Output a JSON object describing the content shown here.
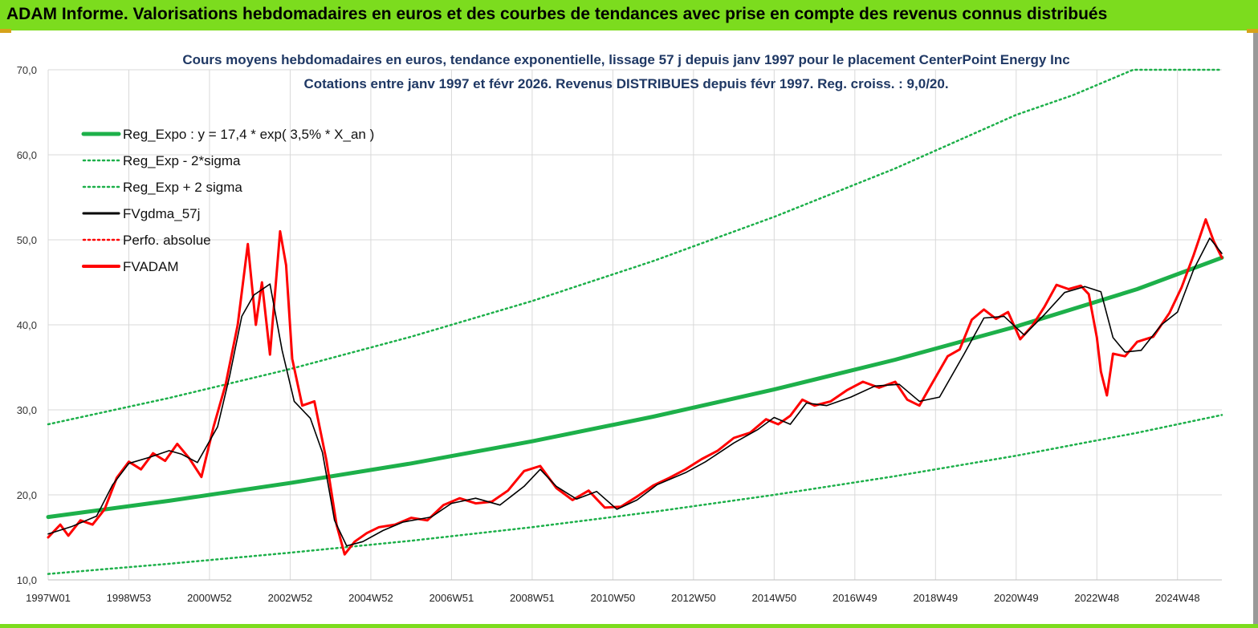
{
  "banner": {
    "title": "ADAM Informe. Valorisations hebdomadaires en euros et des courbes de tendances avec prise en compte des revenus connus distribués"
  },
  "colors": {
    "banner_bg": "#7cdc1e",
    "reg_expo": "#1db04a",
    "sigma_band": "#1db04a",
    "fvgdma": "#000000",
    "perfo": "#ff0000",
    "fvadam": "#ff0000",
    "grid": "#d9d9d9"
  },
  "chart_data": {
    "type": "line",
    "title_lines": [
      "Cours moyens hebdomadaires en euros, tendance exponentielle, lissage 57 j depuis janv 1997 pour le placement CenterPoint Energy Inc",
      "Cotations entre janv 1997 et févr 2026. Revenus DISTRIBUES depuis févr 1997. Reg. croiss. : 9,0/20."
    ],
    "xlabel": "",
    "ylabel": "",
    "x_unit": "year (decimal)",
    "x_range": [
      1997.0,
      2026.1
    ],
    "ylim": [
      10,
      70
    ],
    "yticks": [
      "10,0",
      "20,0",
      "30,0",
      "40,0",
      "50,0",
      "60,0",
      "70,0"
    ],
    "xticks": [
      {
        "label": "1997W01",
        "x": 1997.0
      },
      {
        "label": "1998W53",
        "x": 1999.0
      },
      {
        "label": "2000W52",
        "x": 2001.0
      },
      {
        "label": "2002W52",
        "x": 2003.0
      },
      {
        "label": "2004W52",
        "x": 2005.0
      },
      {
        "label": "2006W51",
        "x": 2007.0
      },
      {
        "label": "2008W51",
        "x": 2009.0
      },
      {
        "label": "2010W50",
        "x": 2011.0
      },
      {
        "label": "2012W50",
        "x": 2013.0
      },
      {
        "label": "2014W50",
        "x": 2015.0
      },
      {
        "label": "2016W49",
        "x": 2017.0
      },
      {
        "label": "2018W49",
        "x": 2019.0
      },
      {
        "label": "2020W49",
        "x": 2021.0
      },
      {
        "label": "2022W48",
        "x": 2023.0
      },
      {
        "label": "2024W48",
        "x": 2025.0
      }
    ],
    "grid": true,
    "legend_position": "top-left",
    "series": [
      {
        "name": "Reg_Expo : y = 17,4 * exp( 3,5% *  X_an )",
        "style": "solid-thick",
        "color": "#1db04a",
        "points": [
          [
            1997.0,
            17.4
          ],
          [
            2000.0,
            19.3
          ],
          [
            2003.0,
            21.4
          ],
          [
            2006.0,
            23.7
          ],
          [
            2009.0,
            26.3
          ],
          [
            2012.0,
            29.2
          ],
          [
            2015.0,
            32.4
          ],
          [
            2018.0,
            35.9
          ],
          [
            2021.0,
            39.8
          ],
          [
            2024.0,
            44.2
          ],
          [
            2026.1,
            47.9
          ]
        ]
      },
      {
        "name": "Reg_Exp - 2*sigma",
        "style": "dotted",
        "color": "#1db04a",
        "points": [
          [
            1997.0,
            10.7
          ],
          [
            2000.0,
            11.9
          ],
          [
            2003.0,
            13.2
          ],
          [
            2006.0,
            14.6
          ],
          [
            2009.0,
            16.2
          ],
          [
            2012.0,
            18.0
          ],
          [
            2015.0,
            20.0
          ],
          [
            2018.0,
            22.2
          ],
          [
            2021.0,
            24.6
          ],
          [
            2024.0,
            27.3
          ],
          [
            2026.1,
            29.4
          ]
        ]
      },
      {
        "name": "Reg_Exp + 2 sigma",
        "style": "dotted",
        "color": "#1db04a",
        "points": [
          [
            1997.0,
            28.3
          ],
          [
            2000.0,
            31.4
          ],
          [
            2003.0,
            34.8
          ],
          [
            2006.0,
            38.6
          ],
          [
            2009.0,
            42.8
          ],
          [
            2012.0,
            47.5
          ],
          [
            2015.0,
            52.7
          ],
          [
            2018.0,
            58.4
          ],
          [
            2021.0,
            64.7
          ],
          [
            2022.4,
            67.0
          ],
          [
            2023.9,
            70.0
          ],
          [
            2026.1,
            70.0
          ]
        ]
      },
      {
        "name": "FVgdma_57j",
        "style": "solid-thin",
        "color": "#000000",
        "points": [
          [
            1997.0,
            15.4
          ],
          [
            1997.6,
            16.3
          ],
          [
            1998.2,
            17.5
          ],
          [
            1998.6,
            21.2
          ],
          [
            1999.0,
            23.7
          ],
          [
            1999.5,
            24.4
          ],
          [
            2000.0,
            25.2
          ],
          [
            2000.3,
            24.8
          ],
          [
            2000.7,
            23.8
          ],
          [
            2001.2,
            28.0
          ],
          [
            2001.5,
            34.0
          ],
          [
            2001.8,
            41.0
          ],
          [
            2002.1,
            43.5
          ],
          [
            2002.5,
            44.8
          ],
          [
            2002.8,
            37.0
          ],
          [
            2003.1,
            31.0
          ],
          [
            2003.5,
            29.0
          ],
          [
            2003.8,
            25.0
          ],
          [
            2004.1,
            17.0
          ],
          [
            2004.4,
            14.0
          ],
          [
            2004.8,
            14.5
          ],
          [
            2005.3,
            15.8
          ],
          [
            2005.8,
            16.8
          ],
          [
            2006.5,
            17.4
          ],
          [
            2007.0,
            19.0
          ],
          [
            2007.6,
            19.6
          ],
          [
            2008.2,
            18.8
          ],
          [
            2008.8,
            21.0
          ],
          [
            2009.2,
            23.0
          ],
          [
            2009.6,
            21.0
          ],
          [
            2010.1,
            19.5
          ],
          [
            2010.6,
            20.4
          ],
          [
            2011.1,
            18.3
          ],
          [
            2011.6,
            19.4
          ],
          [
            2012.1,
            21.2
          ],
          [
            2012.8,
            22.6
          ],
          [
            2013.3,
            23.9
          ],
          [
            2014.0,
            26.1
          ],
          [
            2014.6,
            27.7
          ],
          [
            2015.0,
            29.1
          ],
          [
            2015.4,
            28.3
          ],
          [
            2015.8,
            30.8
          ],
          [
            2016.3,
            30.5
          ],
          [
            2016.9,
            31.5
          ],
          [
            2017.5,
            32.8
          ],
          [
            2018.1,
            33.0
          ],
          [
            2018.6,
            31.0
          ],
          [
            2019.1,
            31.5
          ],
          [
            2019.7,
            36.5
          ],
          [
            2020.2,
            40.8
          ],
          [
            2020.7,
            41.0
          ],
          [
            2021.2,
            38.8
          ],
          [
            2021.7,
            41.2
          ],
          [
            2022.2,
            43.8
          ],
          [
            2022.7,
            44.5
          ],
          [
            2023.1,
            43.9
          ],
          [
            2023.4,
            38.5
          ],
          [
            2023.7,
            36.8
          ],
          [
            2024.1,
            37.0
          ],
          [
            2024.6,
            40.0
          ],
          [
            2025.0,
            41.5
          ],
          [
            2025.4,
            46.5
          ],
          [
            2025.8,
            50.2
          ],
          [
            2026.1,
            48.4
          ]
        ]
      },
      {
        "name": "Perfo. absolue",
        "style": "dotted",
        "color": "#ff0000",
        "points": []
      },
      {
        "name": "FVADAM",
        "style": "solid-thick",
        "color": "#ff0000",
        "points": [
          [
            1997.0,
            15.0
          ],
          [
            1997.3,
            16.5
          ],
          [
            1997.5,
            15.2
          ],
          [
            1997.8,
            17.0
          ],
          [
            1998.1,
            16.5
          ],
          [
            1998.4,
            18.3
          ],
          [
            1998.7,
            22.0
          ],
          [
            1999.0,
            23.9
          ],
          [
            1999.3,
            23.0
          ],
          [
            1999.6,
            24.9
          ],
          [
            1999.9,
            24.0
          ],
          [
            2000.2,
            26.0
          ],
          [
            2000.5,
            24.3
          ],
          [
            2000.8,
            22.1
          ],
          [
            2001.1,
            28.0
          ],
          [
            2001.4,
            33.0
          ],
          [
            2001.7,
            40.0
          ],
          [
            2001.95,
            49.5
          ],
          [
            2002.15,
            40.0
          ],
          [
            2002.3,
            45.0
          ],
          [
            2002.5,
            36.5
          ],
          [
            2002.75,
            51.0
          ],
          [
            2002.9,
            47.0
          ],
          [
            2003.05,
            36.0
          ],
          [
            2003.3,
            30.5
          ],
          [
            2003.6,
            31.0
          ],
          [
            2003.9,
            24.0
          ],
          [
            2004.15,
            16.5
          ],
          [
            2004.35,
            13.0
          ],
          [
            2004.6,
            14.5
          ],
          [
            2004.9,
            15.5
          ],
          [
            2005.2,
            16.2
          ],
          [
            2005.6,
            16.5
          ],
          [
            2006.0,
            17.3
          ],
          [
            2006.4,
            17.0
          ],
          [
            2006.8,
            18.8
          ],
          [
            2007.2,
            19.6
          ],
          [
            2007.6,
            19.0
          ],
          [
            2008.0,
            19.2
          ],
          [
            2008.4,
            20.5
          ],
          [
            2008.8,
            22.8
          ],
          [
            2009.2,
            23.4
          ],
          [
            2009.6,
            20.8
          ],
          [
            2010.0,
            19.4
          ],
          [
            2010.4,
            20.5
          ],
          [
            2010.8,
            18.5
          ],
          [
            2011.2,
            18.6
          ],
          [
            2011.6,
            19.8
          ],
          [
            2012.0,
            21.1
          ],
          [
            2012.4,
            22.0
          ],
          [
            2012.8,
            23.0
          ],
          [
            2013.2,
            24.2
          ],
          [
            2013.6,
            25.2
          ],
          [
            2014.0,
            26.7
          ],
          [
            2014.4,
            27.3
          ],
          [
            2014.8,
            28.9
          ],
          [
            2015.1,
            28.3
          ],
          [
            2015.4,
            29.3
          ],
          [
            2015.7,
            31.2
          ],
          [
            2016.0,
            30.5
          ],
          [
            2016.4,
            31.0
          ],
          [
            2016.8,
            32.3
          ],
          [
            2017.2,
            33.3
          ],
          [
            2017.6,
            32.6
          ],
          [
            2018.0,
            33.3
          ],
          [
            2018.3,
            31.2
          ],
          [
            2018.6,
            30.5
          ],
          [
            2018.9,
            33.0
          ],
          [
            2019.3,
            36.3
          ],
          [
            2019.6,
            37.1
          ],
          [
            2019.9,
            40.6
          ],
          [
            2020.2,
            41.8
          ],
          [
            2020.5,
            40.7
          ],
          [
            2020.8,
            41.5
          ],
          [
            2021.1,
            38.3
          ],
          [
            2021.4,
            39.9
          ],
          [
            2021.7,
            42.1
          ],
          [
            2022.0,
            44.7
          ],
          [
            2022.3,
            44.2
          ],
          [
            2022.6,
            44.6
          ],
          [
            2022.8,
            43.6
          ],
          [
            2023.0,
            38.5
          ],
          [
            2023.1,
            34.5
          ],
          [
            2023.25,
            31.7
          ],
          [
            2023.4,
            36.6
          ],
          [
            2023.7,
            36.3
          ],
          [
            2024.0,
            38.0
          ],
          [
            2024.4,
            38.6
          ],
          [
            2024.8,
            41.4
          ],
          [
            2025.1,
            44.4
          ],
          [
            2025.4,
            48.2
          ],
          [
            2025.7,
            52.4
          ],
          [
            2025.9,
            49.8
          ],
          [
            2026.1,
            47.9
          ]
        ]
      }
    ]
  }
}
